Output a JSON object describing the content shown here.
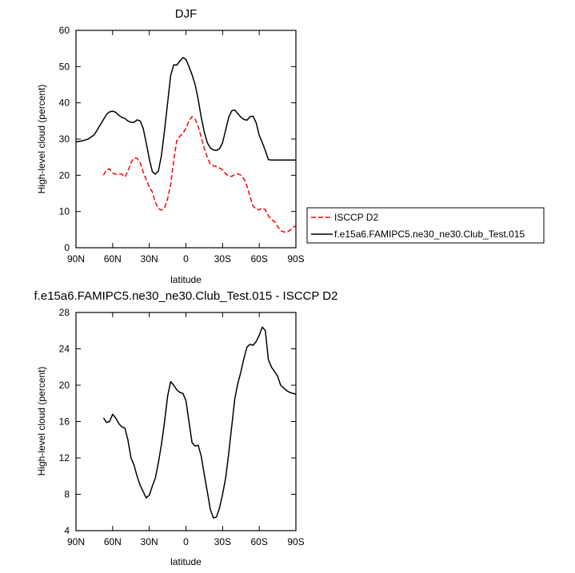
{
  "chart_data": [
    {
      "type": "line",
      "title": "DJF",
      "xlabel": "latitude",
      "ylabel": "High-level cloud (percent)",
      "xlim": [
        90,
        -90
      ],
      "ylim": [
        0,
        60
      ],
      "x_ticks": [
        90,
        60,
        30,
        0,
        -30,
        -60,
        -90
      ],
      "x_tick_labels": [
        "90N",
        "60N",
        "30N",
        "0",
        "30S",
        "60S",
        "90S"
      ],
      "y_ticks": [
        0,
        10,
        20,
        30,
        40,
        50,
        60
      ],
      "y_tick_labels": [
        "0",
        "10",
        "20",
        "30",
        "40",
        "50",
        "60"
      ],
      "legend": "right",
      "grid": false,
      "series": [
        {
          "name": "ISCCP D2",
          "color": "#ff0000",
          "dash": "dashed",
          "x": [
            67.5,
            65,
            62.5,
            60,
            57.5,
            55,
            52.5,
            50,
            47.5,
            45,
            42.5,
            40,
            37.5,
            35,
            32.5,
            30,
            27.5,
            25,
            22.5,
            20,
            17.5,
            15,
            12.5,
            10,
            7.5,
            5,
            2.5,
            0,
            -2.5,
            -5,
            -7.5,
            -10,
            -12.5,
            -15,
            -17.5,
            -20,
            -22.5,
            -25,
            -27.5,
            -30,
            -32.5,
            -35,
            -37.5,
            -40,
            -42.5,
            -45,
            -47.5,
            -50,
            -52.5,
            -55,
            -57.5,
            -60,
            -62.5,
            -65,
            -67.5,
            -70,
            -72.5,
            -75,
            -77.5,
            -80,
            -82.5,
            -85,
            -87.5,
            -90
          ],
          "y": [
            20.0,
            21.5,
            21.8,
            20.6,
            20.3,
            20.4,
            20.3,
            19.5,
            21.0,
            23.5,
            24.8,
            24.7,
            23.5,
            21.0,
            18.8,
            16.8,
            15.4,
            12.5,
            10.8,
            10.4,
            11.0,
            13.5,
            17.5,
            24.0,
            29.5,
            30.8,
            31.5,
            33.0,
            35.0,
            36.2,
            35.5,
            33.5,
            30.5,
            27.5,
            25.0,
            23.0,
            22.6,
            22.4,
            22.0,
            21.5,
            20.4,
            19.8,
            19.7,
            20.2,
            20.4,
            20.0,
            19.0,
            17.0,
            14.0,
            11.5,
            10.6,
            10.5,
            11.0,
            10.5,
            8.8,
            7.8,
            7.2,
            5.9,
            4.7,
            4.4,
            4.2,
            4.8,
            5.5,
            6.2
          ]
        },
        {
          "name": "f.e15a6.FAMIPC5.ne30_ne30.Club_Test.015",
          "color": "#000000",
          "dash": "solid",
          "x": [
            90,
            85,
            80,
            75,
            70,
            65,
            62.5,
            60,
            57.5,
            55,
            52.5,
            50,
            47.5,
            45,
            42.5,
            40,
            37.5,
            35,
            32.5,
            30,
            27.5,
            25,
            22.5,
            20,
            17.5,
            15,
            12.5,
            10,
            7.5,
            5,
            2.5,
            0,
            -2.5,
            -5,
            -7.5,
            -10,
            -12.5,
            -15,
            -17.5,
            -20,
            -22.5,
            -25,
            -27.5,
            -30,
            -32.5,
            -35,
            -37.5,
            -40,
            -42.5,
            -45,
            -47.5,
            -50,
            -52.5,
            -55,
            -57.5,
            -60,
            -62.5,
            -65,
            -67.5,
            -70,
            -72.5,
            -75,
            -77.5,
            -80,
            -82.5,
            -85,
            -87.5,
            -90
          ],
          "y": [
            29.2,
            29.5,
            30.0,
            31.2,
            34.0,
            36.8,
            37.5,
            37.7,
            37.4,
            36.6,
            36.0,
            35.7,
            35.0,
            34.6,
            34.6,
            35.3,
            35.0,
            33.0,
            29.0,
            24.5,
            21.0,
            20.3,
            21.2,
            25.5,
            32.5,
            40.0,
            47.5,
            50.5,
            50.4,
            51.5,
            52.5,
            52.0,
            50.0,
            47.8,
            45.0,
            41.0,
            36.0,
            32.0,
            29.0,
            27.5,
            27.0,
            26.9,
            27.3,
            29.0,
            32.5,
            36.0,
            37.8,
            38.0,
            37.0,
            36.0,
            35.4,
            35.2,
            36.2,
            36.3,
            34.5,
            31.0,
            29.0,
            26.8,
            24.3,
            24.2,
            24.2,
            24.2,
            24.2,
            24.2,
            24.2,
            24.2,
            24.2,
            24.2
          ]
        }
      ]
    },
    {
      "type": "line",
      "title": "f.e15a6.FAMIPC5.ne30_ne30.Club_Test.015 - ISCCP D2",
      "xlabel": "latitude",
      "ylabel": "High-level cloud (percent)",
      "xlim": [
        90,
        -90
      ],
      "ylim": [
        4,
        28
      ],
      "x_ticks": [
        90,
        60,
        30,
        0,
        -30,
        -60,
        -90
      ],
      "x_tick_labels": [
        "90N",
        "60N",
        "30N",
        "0",
        "30S",
        "60S",
        "90S"
      ],
      "y_ticks": [
        4,
        8,
        12,
        16,
        20,
        24,
        28
      ],
      "y_tick_labels": [
        "4",
        "8",
        "12",
        "16",
        "20",
        "24",
        "28"
      ],
      "grid": false,
      "series": [
        {
          "color": "#000000",
          "dash": "solid",
          "x": [
            67.5,
            65,
            62.5,
            60,
            57.5,
            55,
            52.5,
            50,
            47.5,
            45,
            42.5,
            40,
            37.5,
            35,
            32.5,
            30,
            27.5,
            25,
            22.5,
            20,
            17.5,
            15,
            12.5,
            10,
            7.5,
            5,
            2.5,
            0,
            -2.5,
            -5,
            -7.5,
            -10,
            -12.5,
            -15,
            -17.5,
            -20,
            -22.5,
            -25,
            -27.5,
            -30,
            -32.5,
            -35,
            -37.5,
            -40,
            -42.5,
            -45,
            -47.5,
            -50,
            -52.5,
            -55,
            -57.5,
            -60,
            -62.5,
            -65,
            -67.5,
            -70,
            -72.5,
            -75,
            -77.5,
            -80,
            -82.5,
            -85,
            -87.5,
            -90
          ],
          "y": [
            16.4,
            15.9,
            16.0,
            16.8,
            16.4,
            15.8,
            15.4,
            15.3,
            14.0,
            12.0,
            11.2,
            10.0,
            9.0,
            8.3,
            7.6,
            7.9,
            8.9,
            9.8,
            11.5,
            13.5,
            16.0,
            18.8,
            20.4,
            20.0,
            19.5,
            19.2,
            19.1,
            18.3,
            16.0,
            13.7,
            13.3,
            13.4,
            12.2,
            10.2,
            8.3,
            6.3,
            5.4,
            5.5,
            6.5,
            8.0,
            9.8,
            12.5,
            15.5,
            18.5,
            20.2,
            21.5,
            23.0,
            24.2,
            24.5,
            24.4,
            24.8,
            25.5,
            26.4,
            26.0,
            22.8,
            22.0,
            21.5,
            21.0,
            20.0,
            19.7,
            19.4,
            19.2,
            19.1,
            19.0
          ]
        }
      ]
    }
  ]
}
